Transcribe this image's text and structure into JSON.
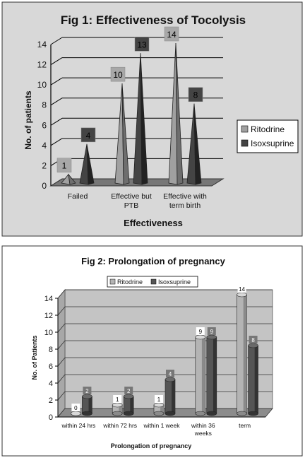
{
  "chart_data": [
    {
      "type": "bar",
      "title": "Fig 1: Effectiveness of Tocolysis",
      "xlabel": "Effectiveness",
      "ylabel": "No. of patients",
      "ylim": [
        0,
        14
      ],
      "yticks": [
        "0",
        "2",
        "4",
        "6",
        "8",
        "10",
        "12",
        "14"
      ],
      "categories": [
        "Failed",
        "Effective but PTB",
        "Effective with term birth"
      ],
      "category_lines": [
        [
          "Failed"
        ],
        [
          "Effective but",
          "PTB"
        ],
        [
          "Effective with",
          "term birth"
        ]
      ],
      "series": [
        {
          "name": "Ritodrine",
          "values": [
            1,
            10,
            14
          ],
          "color": "#a0a0a0"
        },
        {
          "name": "Isoxsuprine",
          "values": [
            4,
            13,
            8
          ],
          "color": "#444444"
        }
      ],
      "legend_position": "right",
      "grid": true,
      "shape": "cone-3d",
      "data_labels": true
    },
    {
      "type": "bar",
      "title": "Fig 2: Prolongation of pregnancy",
      "xlabel": "Prolongation of pregnancy",
      "ylabel": "No. of Patients",
      "ylim": [
        0,
        14
      ],
      "yticks": [
        "0",
        "2",
        "4",
        "6",
        "8",
        "10",
        "12",
        "14"
      ],
      "categories": [
        "within 24 hrs",
        "within 72 hrs",
        "within 1 week",
        "within 36 weeks",
        "term"
      ],
      "category_lines": [
        [
          "within 24 hrs"
        ],
        [
          "within 72 hrs"
        ],
        [
          "within 1 week"
        ],
        [
          "within 36",
          "weeks"
        ],
        [
          "term"
        ]
      ],
      "series": [
        {
          "name": "Ritodrine",
          "values": [
            0,
            1,
            1,
            9,
            14
          ],
          "color": "#b4b4b4"
        },
        {
          "name": "Isoxsuprine",
          "values": [
            2,
            2,
            4,
            9,
            8
          ],
          "color": "#555555"
        }
      ],
      "legend_position": "top",
      "grid": true,
      "shape": "cylinder-3d",
      "data_labels": true
    }
  ]
}
